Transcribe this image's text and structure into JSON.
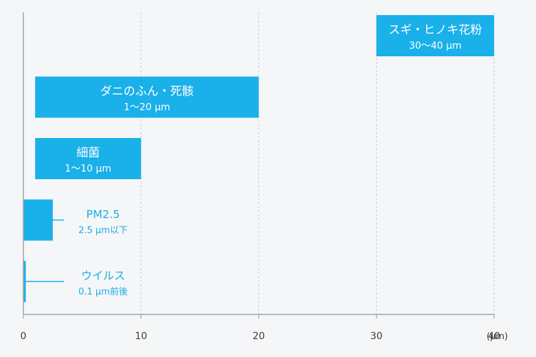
{
  "chart_data": {
    "type": "bar",
    "orientation": "horizontal",
    "xlim": [
      0,
      40
    ],
    "x_ticks": [
      0,
      10,
      20,
      30,
      40
    ],
    "x_unit": "(μm)",
    "grid": "vertical dashed",
    "bar_color": "#1ab0ea",
    "label_color": "#1aaee3",
    "bars": [
      {
        "name": "スギ・ヒノキ花粉",
        "range_text": "30〜40 μm",
        "min": 30,
        "max": 40,
        "label_position": "inside"
      },
      {
        "name": "ダニのふん・死骸",
        "range_text": "1〜20 μm",
        "min": 1,
        "max": 20,
        "label_position": "inside"
      },
      {
        "name": "細菌",
        "range_text": "1〜10 μm",
        "min": 1,
        "max": 10,
        "label_position": "inside"
      },
      {
        "name": "PM2.5",
        "range_text": "2.5 μm以下",
        "min": 0,
        "max": 2.5,
        "label_position": "outside"
      },
      {
        "name": "ウイルス",
        "range_text": "0.1 μm前後",
        "min": 0,
        "max": 0.1,
        "label_position": "outside"
      }
    ]
  }
}
